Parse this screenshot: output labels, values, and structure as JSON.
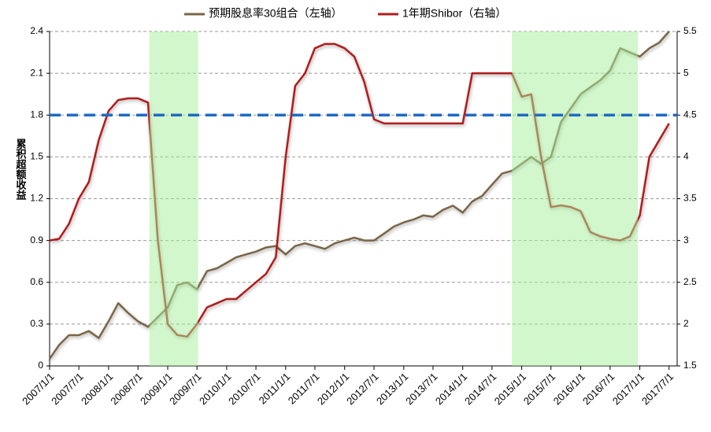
{
  "chart_data": {
    "type": "line",
    "y_label": "累积超额收益",
    "x": [
      "2007/1/1",
      "2007/3/1",
      "2007/5/1",
      "2007/7/1",
      "2007/9/1",
      "2007/11/1",
      "2008/1/1",
      "2008/3/1",
      "2008/5/1",
      "2008/7/1",
      "2008/9/1",
      "2008/11/1",
      "2009/1/1",
      "2009/3/1",
      "2009/5/1",
      "2009/7/1",
      "2009/9/1",
      "2009/11/1",
      "2010/1/1",
      "2010/3/1",
      "2010/5/1",
      "2010/7/1",
      "2010/9/1",
      "2010/11/1",
      "2011/1/1",
      "2011/3/1",
      "2011/5/1",
      "2011/7/1",
      "2011/9/1",
      "2011/11/1",
      "2012/1/1",
      "2012/3/1",
      "2012/5/1",
      "2012/7/1",
      "2012/9/1",
      "2012/11/1",
      "2013/1/1",
      "2013/3/1",
      "2013/5/1",
      "2013/7/1",
      "2013/9/1",
      "2013/11/1",
      "2014/1/1",
      "2014/3/1",
      "2014/5/1",
      "2014/7/1",
      "2014/9/1",
      "2014/11/1",
      "2015/1/1",
      "2015/3/1",
      "2015/5/1",
      "2015/7/1",
      "2015/9/1",
      "2015/11/1",
      "2016/1/1",
      "2016/3/1",
      "2016/5/1",
      "2016/7/1",
      "2016/9/1",
      "2016/11/1",
      "2017/1/1",
      "2017/3/1",
      "2017/5/1",
      "2017/7/1"
    ],
    "series": [
      {
        "name": "预期股息率30组合（左轴）",
        "color": "#7a6547",
        "axis": "y",
        "values": [
          0.05,
          0.15,
          0.22,
          0.22,
          0.25,
          0.2,
          0.32,
          0.45,
          0.38,
          0.32,
          0.28,
          0.35,
          0.42,
          0.58,
          0.6,
          0.55,
          0.68,
          0.7,
          0.74,
          0.78,
          0.8,
          0.82,
          0.85,
          0.86,
          0.8,
          0.86,
          0.88,
          0.86,
          0.84,
          0.88,
          0.9,
          0.92,
          0.9,
          0.9,
          0.95,
          1.0,
          1.03,
          1.05,
          1.08,
          1.07,
          1.12,
          1.15,
          1.1,
          1.18,
          1.22,
          1.3,
          1.38,
          1.4,
          1.45,
          1.5,
          1.45,
          1.5,
          1.75,
          1.85,
          1.95,
          2.0,
          2.05,
          2.12,
          2.28,
          2.25,
          2.22,
          2.28,
          2.32,
          2.4
        ]
      },
      {
        "name": "1年期Shibor（右轴）",
        "color": "#b01e1e",
        "axis": "y2",
        "values": [
          3.0,
          3.02,
          3.2,
          3.5,
          3.7,
          4.2,
          4.55,
          4.68,
          4.7,
          4.7,
          4.65,
          3.0,
          2.0,
          1.87,
          1.85,
          2.0,
          2.2,
          2.25,
          2.3,
          2.3,
          2.4,
          2.5,
          2.6,
          2.8,
          4.0,
          4.85,
          5.0,
          5.3,
          5.35,
          5.35,
          5.3,
          5.2,
          4.9,
          4.45,
          4.4,
          4.4,
          4.4,
          4.4,
          4.4,
          4.4,
          4.4,
          4.4,
          4.4,
          5.0,
          5.0,
          5.0,
          5.0,
          5.0,
          4.72,
          4.75,
          4.0,
          3.4,
          3.42,
          3.4,
          3.35,
          3.1,
          3.05,
          3.02,
          3.0,
          3.05,
          3.3,
          4.0,
          4.2,
          4.4
        ]
      }
    ],
    "xlim": [
      "2007/1/1",
      "2017/8/20"
    ],
    "xticks": [
      "2007/1/1",
      "2007/7/1",
      "2008/1/1",
      "2008/7/1",
      "2009/1/1",
      "2009/7/1",
      "2010/1/1",
      "2010/7/1",
      "2011/1/1",
      "2011/7/1",
      "2012/1/1",
      "2012/7/1",
      "2013/1/1",
      "2013/7/1",
      "2014/1/1",
      "2014/7/1",
      "2015/1/1",
      "2015/7/1",
      "2016/1/1",
      "2016/7/1",
      "2017/1/1",
      "2017/7/1"
    ],
    "ylim": [
      0,
      2.4
    ],
    "yticks": [
      0,
      0.3,
      0.6,
      0.9,
      1.2,
      1.5,
      1.8,
      2.1,
      2.4
    ],
    "y2lim": [
      1.5,
      5.5
    ],
    "y2ticks": [
      1.5,
      2,
      2.5,
      3,
      3.5,
      4,
      4.5,
      5,
      5.5
    ],
    "grid": true,
    "reference_line": {
      "value": 1.8,
      "axis": "y",
      "color": "#1f6cc4"
    },
    "shaded_ranges": [
      [
        "2008/9/10",
        "2009/7/8"
      ],
      [
        "2014/11/1",
        "2016/12/20"
      ]
    ],
    "shade_color": "#a8f09a"
  }
}
